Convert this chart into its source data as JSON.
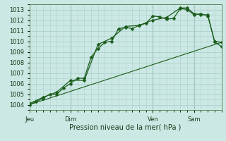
{
  "xlabel": "Pression niveau de la mer( hPa )",
  "bg_color": "#cce8e4",
  "grid_color": "#aad0cc",
  "line_color": "#1a5c1a",
  "ylim": [
    1003.5,
    1013.5
  ],
  "yticks": [
    1004,
    1005,
    1006,
    1007,
    1008,
    1009,
    1010,
    1011,
    1012,
    1013
  ],
  "day_labels": [
    "Jeu",
    "Dim",
    "Ven",
    "Sam"
  ],
  "day_positions": [
    0.0,
    0.214,
    0.643,
    0.857
  ],
  "xlim": [
    0,
    1.0
  ],
  "line1_x": [
    0.0,
    0.036,
    0.071,
    0.107,
    0.143,
    0.179,
    0.214,
    0.25,
    0.286,
    0.321,
    0.357,
    0.393,
    0.429,
    0.464,
    0.5,
    0.536,
    0.571,
    0.607,
    0.643,
    0.679,
    0.714,
    0.75,
    0.786,
    0.821,
    0.857,
    0.893,
    0.929,
    0.964,
    1.0
  ],
  "line1_y": [
    1004.0,
    1004.3,
    1004.6,
    1005.0,
    1005.0,
    1005.6,
    1006.0,
    1006.5,
    1006.5,
    1008.5,
    1009.3,
    1009.9,
    1010.0,
    1011.2,
    1011.3,
    1011.2,
    1011.5,
    1011.7,
    1012.4,
    1012.3,
    1012.1,
    1012.15,
    1013.1,
    1013.0,
    1012.5,
    1012.6,
    1012.4,
    1010.0,
    1009.9
  ],
  "line2_x": [
    0.0,
    0.071,
    0.143,
    0.214,
    0.286,
    0.357,
    0.429,
    0.5,
    0.571,
    0.643,
    0.714,
    0.786,
    0.821,
    0.857,
    0.893,
    0.929,
    0.964,
    1.0
  ],
  "line2_y": [
    1004.1,
    1004.7,
    1005.2,
    1006.3,
    1006.3,
    1009.7,
    1010.3,
    1011.4,
    1011.5,
    1012.0,
    1012.25,
    1013.15,
    1013.15,
    1012.6,
    1012.5,
    1012.5,
    1009.95,
    1009.5
  ],
  "line3_x": [
    0.0,
    1.0
  ],
  "line3_y": [
    1004.0,
    1009.9
  ],
  "marker_size": 2.5,
  "tick_labelsize": 6,
  "xlabel_fontsize": 7
}
